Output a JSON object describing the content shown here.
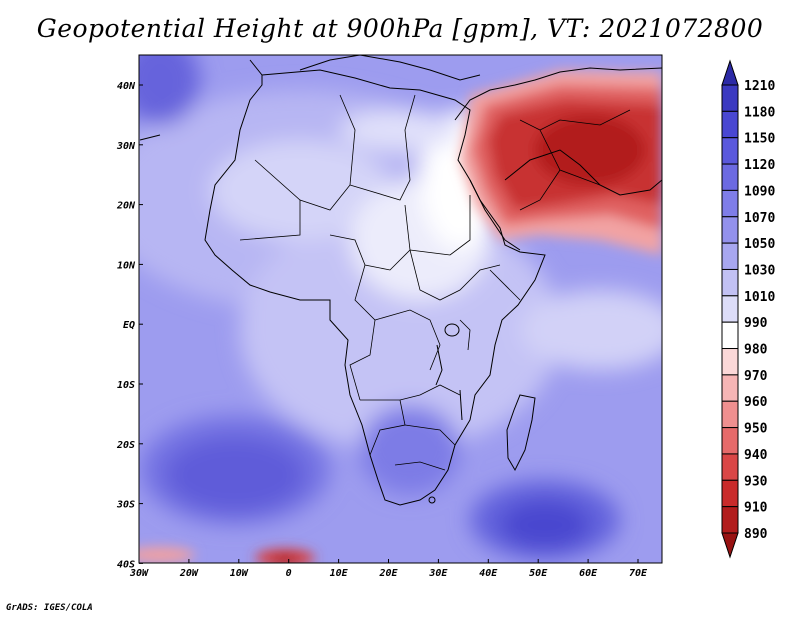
{
  "title": "Geopotential Height at 900hPa [gpm], VT: 2021072800",
  "credit": "GrADS: IGES/COLA",
  "lat_labels": [
    "40N",
    "30N",
    "20N",
    "10N",
    "EQ",
    "10S",
    "20S",
    "30S",
    "40S"
  ],
  "lon_labels": [
    "30W",
    "20W",
    "10W",
    "0",
    "10E",
    "20E",
    "30E",
    "40E",
    "50E",
    "60E",
    "70E"
  ],
  "colorbar": {
    "labels": [
      "1210",
      "1180",
      "1150",
      "1120",
      "1090",
      "1070",
      "1050",
      "1030",
      "1010",
      "990",
      "980",
      "970",
      "960",
      "950",
      "940",
      "930",
      "910",
      "890"
    ],
    "colors": [
      "#2c2aa6",
      "#3b39c0",
      "#4947d2",
      "#5a58dc",
      "#6c6ae2",
      "#7f7de8",
      "#9391ec",
      "#a8a7f0",
      "#c2c1f4",
      "#dcdcf8",
      "#ffffff",
      "#fbd8d8",
      "#f6b5b5",
      "#ef8f8f",
      "#e66a6a",
      "#da4646",
      "#c92b2b",
      "#b21c1c",
      "#981212"
    ]
  }
}
